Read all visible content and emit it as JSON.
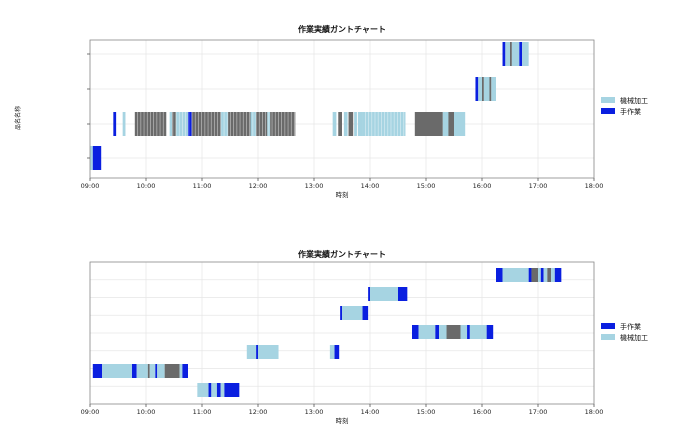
{
  "chart_data": [
    {
      "type": "gantt",
      "title": "作業実績ガントチャート",
      "xlabel": "時刻",
      "ylabel": "品名名称",
      "xticks": [
        "09:00",
        "10:00",
        "11:00",
        "12:00",
        "13:00",
        "14:00",
        "15:00",
        "16:00",
        "17:00",
        "18:00"
      ],
      "xlim": [
        "09:00",
        "18:00"
      ],
      "rows": 5,
      "grid": true,
      "legend_position": "right",
      "legend": [
        {
          "name": "機械加工",
          "color": "#a6d4e2"
        },
        {
          "name": "手作業",
          "color": "#0a1fe0"
        }
      ],
      "colors": {
        "light": "#a6d4e2",
        "dark": "#0a1fe0",
        "gray": "#6a6a6a",
        "white": "#ffffff"
      },
      "bars": [
        {
          "row": 0,
          "start": "09:00",
          "end": "09:12",
          "series": "機械加工",
          "segments": [
            {
              "start": "09:00",
              "end": "09:03",
              "color": "light"
            },
            {
              "start": "09:03",
              "end": "09:12",
              "color": "dark"
            }
          ]
        },
        {
          "row": 1,
          "start": "09:25",
          "end": "09:28",
          "series": "手作業",
          "segments": [
            {
              "start": "09:25",
              "end": "09:28",
              "color": "dark"
            }
          ]
        },
        {
          "row": 1,
          "start": "09:35",
          "end": "09:38",
          "series": "機械加工",
          "segments": [
            {
              "start": "09:35",
              "end": "09:38",
              "color": "light"
            }
          ]
        },
        {
          "row": 1,
          "start": "09:48",
          "end": "12:40",
          "series": "機械加工",
          "stripe": true,
          "segments": [
            {
              "start": "09:48",
              "end": "10:22",
              "color": "gray"
            },
            {
              "start": "10:22",
              "end": "10:25",
              "color": "white"
            },
            {
              "start": "10:25",
              "end": "10:28",
              "color": "light"
            },
            {
              "start": "10:28",
              "end": "10:32",
              "color": "gray"
            },
            {
              "start": "10:32",
              "end": "10:45",
              "color": "light"
            },
            {
              "start": "10:45",
              "end": "10:49",
              "color": "dark"
            },
            {
              "start": "10:49",
              "end": "11:20",
              "color": "gray"
            },
            {
              "start": "11:20",
              "end": "11:28",
              "color": "light"
            },
            {
              "start": "11:28",
              "end": "11:52",
              "color": "gray"
            },
            {
              "start": "11:52",
              "end": "11:58",
              "color": "light"
            },
            {
              "start": "11:58",
              "end": "12:10",
              "color": "gray"
            },
            {
              "start": "12:10",
              "end": "12:13",
              "color": "light"
            },
            {
              "start": "12:13",
              "end": "12:40",
              "color": "gray"
            }
          ]
        },
        {
          "row": 1,
          "start": "13:20",
          "end": "13:52",
          "series": "機械加工",
          "segments": [
            {
              "start": "13:20",
              "end": "13:24",
              "color": "light"
            },
            {
              "start": "13:26",
              "end": "13:30",
              "color": "gray"
            },
            {
              "start": "13:32",
              "end": "13:36",
              "color": "light"
            },
            {
              "start": "13:37",
              "end": "13:42",
              "color": "gray"
            },
            {
              "start": "13:43",
              "end": "13:46",
              "color": "light"
            },
            {
              "start": "13:47",
              "end": "13:52",
              "color": "light"
            }
          ]
        },
        {
          "row": 1,
          "start": "13:52",
          "end": "14:38",
          "series": "機械加工",
          "stripe": true,
          "segments": [
            {
              "start": "13:52",
              "end": "14:38",
              "color": "light"
            }
          ]
        },
        {
          "row": 1,
          "start": "14:48",
          "end": "15:42",
          "series": "機械加工",
          "segments": [
            {
              "start": "14:48",
              "end": "15:18",
              "color": "gray"
            },
            {
              "start": "15:18",
              "end": "15:24",
              "color": "light"
            },
            {
              "start": "15:24",
              "end": "15:30",
              "color": "gray"
            },
            {
              "start": "15:30",
              "end": "15:42",
              "color": "light"
            }
          ]
        },
        {
          "row": 2,
          "start": "15:53",
          "end": "16:15",
          "series": "機械加工",
          "segments": [
            {
              "start": "15:53",
              "end": "15:56",
              "color": "dark"
            },
            {
              "start": "15:56",
              "end": "16:00",
              "color": "light"
            },
            {
              "start": "16:00",
              "end": "16:02",
              "color": "gray"
            },
            {
              "start": "16:02",
              "end": "16:08",
              "color": "light"
            },
            {
              "start": "16:08",
              "end": "16:10",
              "color": "gray"
            },
            {
              "start": "16:10",
              "end": "16:15",
              "color": "light"
            }
          ]
        },
        {
          "row": 3,
          "start": "16:22",
          "end": "16:50",
          "series": "機械加工",
          "segments": [
            {
              "start": "16:22",
              "end": "16:25",
              "color": "dark"
            },
            {
              "start": "16:25",
              "end": "16:30",
              "color": "light"
            },
            {
              "start": "16:30",
              "end": "16:32",
              "color": "gray"
            },
            {
              "start": "16:32",
              "end": "16:40",
              "color": "light"
            },
            {
              "start": "16:40",
              "end": "16:43",
              "color": "dark"
            },
            {
              "start": "16:43",
              "end": "16:50",
              "color": "light"
            }
          ]
        }
      ]
    },
    {
      "type": "gantt",
      "title": "作業実績ガントチャート",
      "xlabel": "時刻",
      "xticks": [
        "09:00",
        "10:00",
        "11:00",
        "12:00",
        "13:00",
        "14:00",
        "15:00",
        "16:00",
        "17:00",
        "18:00"
      ],
      "xlim": [
        "09:00",
        "18:00"
      ],
      "rows": 8,
      "grid": true,
      "legend_position": "right",
      "legend": [
        {
          "name": "手作業",
          "color": "#0a1fe0"
        },
        {
          "name": "機械加工",
          "color": "#a6d4e2"
        }
      ],
      "colors": {
        "light": "#a6d4e2",
        "dark": "#0a1fe0",
        "gray": "#6a6a6a",
        "white": "#ffffff"
      },
      "bars": [
        {
          "row": 0,
          "start": "10:55",
          "end": "11:40",
          "series": "機械加工",
          "segments": [
            {
              "start": "10:55",
              "end": "11:07",
              "color": "light"
            },
            {
              "start": "11:07",
              "end": "11:10",
              "color": "dark"
            },
            {
              "start": "11:10",
              "end": "11:16",
              "color": "light"
            },
            {
              "start": "11:16",
              "end": "11:20",
              "color": "dark"
            },
            {
              "start": "11:20",
              "end": "11:24",
              "color": "light"
            },
            {
              "start": "11:24",
              "end": "11:40",
              "color": "dark"
            }
          ]
        },
        {
          "row": 1,
          "start": "09:03",
          "end": "10:45",
          "series": "機械加工",
          "segments": [
            {
              "start": "09:03",
              "end": "09:13",
              "color": "dark"
            },
            {
              "start": "09:13",
              "end": "09:45",
              "color": "light"
            },
            {
              "start": "09:45",
              "end": "09:50",
              "color": "dark"
            },
            {
              "start": "09:50",
              "end": "10:02",
              "color": "light"
            },
            {
              "start": "10:02",
              "end": "10:04",
              "color": "gray"
            },
            {
              "start": "10:04",
              "end": "10:10",
              "color": "light"
            },
            {
              "start": "10:10",
              "end": "10:12",
              "color": "dark"
            },
            {
              "start": "10:12",
              "end": "10:20",
              "color": "light"
            },
            {
              "start": "10:20",
              "end": "10:36",
              "color": "gray"
            },
            {
              "start": "10:36",
              "end": "10:39",
              "color": "light"
            },
            {
              "start": "10:39",
              "end": "10:45",
              "color": "dark"
            }
          ]
        },
        {
          "row": 2,
          "start": "11:48",
          "end": "12:22",
          "series": "機械加工",
          "segments": [
            {
              "start": "11:48",
              "end": "11:58",
              "color": "light"
            },
            {
              "start": "11:58",
              "end": "12:00",
              "color": "dark"
            },
            {
              "start": "12:00",
              "end": "12:22",
              "color": "light"
            }
          ]
        },
        {
          "row": 2,
          "start": "13:17",
          "end": "13:27",
          "series": "手作業",
          "segments": [
            {
              "start": "13:17",
              "end": "13:22",
              "color": "light"
            },
            {
              "start": "13:22",
              "end": "13:27",
              "color": "dark"
            }
          ]
        },
        {
          "row": 3,
          "start": "14:45",
          "end": "16:12",
          "series": "機械加工",
          "segments": [
            {
              "start": "14:45",
              "end": "14:52",
              "color": "dark"
            },
            {
              "start": "14:52",
              "end": "15:10",
              "color": "light"
            },
            {
              "start": "15:10",
              "end": "15:14",
              "color": "dark"
            },
            {
              "start": "15:14",
              "end": "15:22",
              "color": "light"
            },
            {
              "start": "15:22",
              "end": "15:37",
              "color": "gray"
            },
            {
              "start": "15:37",
              "end": "15:44",
              "color": "light"
            },
            {
              "start": "15:44",
              "end": "15:47",
              "color": "dark"
            },
            {
              "start": "15:47",
              "end": "16:05",
              "color": "light"
            },
            {
              "start": "16:05",
              "end": "16:12",
              "color": "dark"
            }
          ]
        },
        {
          "row": 4,
          "start": "13:28",
          "end": "13:58",
          "series": "機械加工",
          "segments": [
            {
              "start": "13:28",
              "end": "13:30",
              "color": "dark"
            },
            {
              "start": "13:30",
              "end": "13:52",
              "color": "light"
            },
            {
              "start": "13:52",
              "end": "13:58",
              "color": "dark"
            }
          ]
        },
        {
          "row": 5,
          "start": "13:58",
          "end": "14:40",
          "series": "機械加工",
          "segments": [
            {
              "start": "13:58",
              "end": "14:00",
              "color": "dark"
            },
            {
              "start": "14:00",
              "end": "14:30",
              "color": "light"
            },
            {
              "start": "14:30",
              "end": "14:40",
              "color": "dark"
            }
          ]
        },
        {
          "row": 6,
          "start": "16:15",
          "end": "17:25",
          "series": "機械加工",
          "segments": [
            {
              "start": "16:15",
              "end": "16:22",
              "color": "dark"
            },
            {
              "start": "16:22",
              "end": "16:50",
              "color": "light"
            },
            {
              "start": "16:50",
              "end": "16:53",
              "color": "dark"
            },
            {
              "start": "16:53",
              "end": "17:00",
              "color": "gray"
            },
            {
              "start": "17:00",
              "end": "17:03",
              "color": "light"
            },
            {
              "start": "17:03",
              "end": "17:06",
              "color": "dark"
            },
            {
              "start": "17:06",
              "end": "17:10",
              "color": "light"
            },
            {
              "start": "17:10",
              "end": "17:14",
              "color": "gray"
            },
            {
              "start": "17:14",
              "end": "17:18",
              "color": "light"
            },
            {
              "start": "17:18",
              "end": "17:25",
              "color": "dark"
            }
          ]
        }
      ]
    }
  ]
}
